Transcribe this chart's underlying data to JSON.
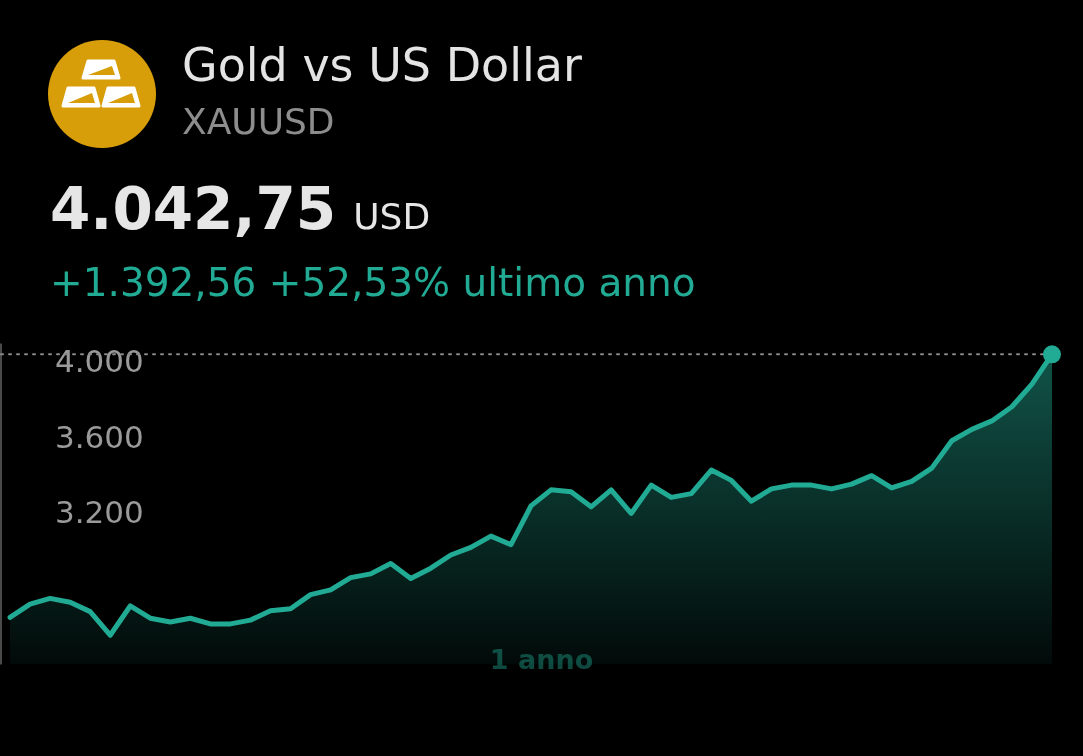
{
  "chart_data": {
    "type": "area",
    "title": "Gold vs US Dollar",
    "subtitle": "XAUUSD",
    "annotations": [
      "4.042,75",
      "USD",
      "+1.392,56 +52,53% ultimo anno"
    ],
    "xlabel": "1 anno",
    "categories": [
      null,
      null,
      null,
      null,
      null,
      null,
      null,
      null,
      null,
      null,
      null,
      null,
      null,
      null,
      null,
      null,
      null,
      null,
      null,
      null,
      null,
      null,
      null,
      null,
      null,
      null,
      null,
      null,
      null,
      null,
      null,
      null,
      null,
      null,
      null,
      null,
      null,
      null,
      null,
      null,
      null,
      null,
      null,
      null,
      null,
      null,
      null,
      null,
      null,
      null,
      null,
      null,
      null
    ],
    "series": [
      {
        "type": "area",
        "color": "#22ab94",
        "values": [
          2650,
          2720,
          2750,
          2730,
          2680,
          2555,
          2710,
          2645,
          2625,
          2645,
          2615,
          2615,
          2635,
          2685,
          2695,
          2770,
          2795,
          2860,
          2880,
          2935,
          2855,
          2910,
          2980,
          3020,
          3080,
          3035,
          3240,
          3325,
          3315,
          3235,
          3325,
          3200,
          3350,
          3285,
          3305,
          3430,
          3375,
          3265,
          3330,
          3350,
          3350,
          3330,
          3355,
          3400,
          3335,
          3370,
          3440,
          3585,
          3645,
          3690,
          3765,
          3885,
          4042.75
        ]
      },
      {
        "type": "scatter",
        "color": "#22ab94",
        "marker": "circle",
        "values": [
          null,
          null,
          null,
          null,
          null,
          null,
          null,
          null,
          null,
          null,
          null,
          null,
          null,
          null,
          null,
          null,
          null,
          null,
          null,
          null,
          null,
          null,
          null,
          null,
          null,
          null,
          null,
          null,
          null,
          null,
          null,
          null,
          null,
          null,
          null,
          null,
          null,
          null,
          null,
          null,
          null,
          null,
          null,
          null,
          null,
          null,
          null,
          null,
          null,
          null,
          null,
          null,
          4042.75
        ]
      }
    ],
    "ylim": [
      2400,
      4100
    ],
    "yticks": [
      {
        "value": 3200,
        "label": "3.200"
      },
      {
        "value": 3600,
        "label": "3.600"
      },
      {
        "value": 4000,
        "label": "4.000"
      }
    ],
    "tick_labels": "y",
    "ref_lines": [
      {
        "axis": "y",
        "value": 4042.75,
        "color": "#8a8a8a",
        "line_style": "dotted"
      }
    ]
  }
}
